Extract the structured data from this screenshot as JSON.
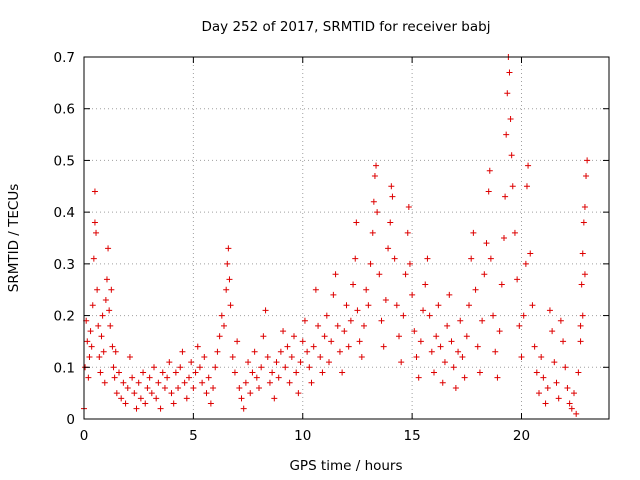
{
  "chart_data": {
    "type": "scatter",
    "title": "Day 252 of 2017, SRMTID for receiver babj",
    "xlabel": "GPS time / hours",
    "ylabel": "SRMTID / TECUs",
    "xlim": [
      0,
      24
    ],
    "ylim": [
      0,
      0.7
    ],
    "xticks": [
      0,
      5,
      10,
      15,
      20
    ],
    "yticks": [
      0,
      0.1,
      0.2,
      0.3,
      0.4,
      0.5,
      0.6,
      0.7
    ],
    "xtick_labels": [
      "0",
      "5",
      "10",
      "15",
      "20"
    ],
    "ytick_labels": [
      "0",
      "0.1",
      "0.2",
      "0.3",
      "0.4",
      "0.5",
      "0.6",
      "0.7"
    ],
    "grid": true,
    "legend": "none",
    "marker": "+",
    "color": "#dd0000",
    "series": [
      {
        "name": "SRMTID",
        "points": [
          [
            0.0,
            0.02
          ],
          [
            0.05,
            0.1
          ],
          [
            0.1,
            0.19
          ],
          [
            0.15,
            0.15
          ],
          [
            0.2,
            0.08
          ],
          [
            0.25,
            0.12
          ],
          [
            0.3,
            0.17
          ],
          [
            0.35,
            0.14
          ],
          [
            0.4,
            0.22
          ],
          [
            0.45,
            0.31
          ],
          [
            0.5,
            0.44
          ],
          [
            0.5,
            0.38
          ],
          [
            0.55,
            0.36
          ],
          [
            0.6,
            0.25
          ],
          [
            0.65,
            0.18
          ],
          [
            0.7,
            0.12
          ],
          [
            0.75,
            0.09
          ],
          [
            0.8,
            0.16
          ],
          [
            0.85,
            0.2
          ],
          [
            0.9,
            0.13
          ],
          [
            0.95,
            0.07
          ],
          [
            1.0,
            0.23
          ],
          [
            1.05,
            0.27
          ],
          [
            1.1,
            0.33
          ],
          [
            1.15,
            0.21
          ],
          [
            1.2,
            0.18
          ],
          [
            1.25,
            0.25
          ],
          [
            1.3,
            0.14
          ],
          [
            1.35,
            0.1
          ],
          [
            1.4,
            0.08
          ],
          [
            1.45,
            0.13
          ],
          [
            1.5,
            0.05
          ],
          [
            1.6,
            0.09
          ],
          [
            1.7,
            0.04
          ],
          [
            1.8,
            0.07
          ],
          [
            1.9,
            0.03
          ],
          [
            2.0,
            0.06
          ],
          [
            2.1,
            0.12
          ],
          [
            2.2,
            0.08
          ],
          [
            2.3,
            0.05
          ],
          [
            2.4,
            0.02
          ],
          [
            2.5,
            0.07
          ],
          [
            2.6,
            0.04
          ],
          [
            2.7,
            0.09
          ],
          [
            2.8,
            0.03
          ],
          [
            2.9,
            0.06
          ],
          [
            3.0,
            0.08
          ],
          [
            3.1,
            0.05
          ],
          [
            3.2,
            0.1
          ],
          [
            3.3,
            0.04
          ],
          [
            3.4,
            0.07
          ],
          [
            3.5,
            0.02
          ],
          [
            3.6,
            0.09
          ],
          [
            3.7,
            0.06
          ],
          [
            3.8,
            0.08
          ],
          [
            3.9,
            0.11
          ],
          [
            4.0,
            0.05
          ],
          [
            4.1,
            0.03
          ],
          [
            4.2,
            0.09
          ],
          [
            4.3,
            0.06
          ],
          [
            4.4,
            0.1
          ],
          [
            4.5,
            0.13
          ],
          [
            4.6,
            0.07
          ],
          [
            4.7,
            0.04
          ],
          [
            4.8,
            0.08
          ],
          [
            4.9,
            0.11
          ],
          [
            5.0,
            0.06
          ],
          [
            5.1,
            0.09
          ],
          [
            5.2,
            0.14
          ],
          [
            5.3,
            0.1
          ],
          [
            5.4,
            0.07
          ],
          [
            5.5,
            0.12
          ],
          [
            5.6,
            0.05
          ],
          [
            5.7,
            0.08
          ],
          [
            5.8,
            0.03
          ],
          [
            5.9,
            0.06
          ],
          [
            6.0,
            0.1
          ],
          [
            6.1,
            0.13
          ],
          [
            6.2,
            0.16
          ],
          [
            6.3,
            0.2
          ],
          [
            6.4,
            0.18
          ],
          [
            6.5,
            0.25
          ],
          [
            6.55,
            0.3
          ],
          [
            6.6,
            0.33
          ],
          [
            6.65,
            0.27
          ],
          [
            6.7,
            0.22
          ],
          [
            6.8,
            0.12
          ],
          [
            6.9,
            0.09
          ],
          [
            7.0,
            0.15
          ],
          [
            7.1,
            0.06
          ],
          [
            7.2,
            0.04
          ],
          [
            7.3,
            0.02
          ],
          [
            7.4,
            0.07
          ],
          [
            7.5,
            0.11
          ],
          [
            7.6,
            0.05
          ],
          [
            7.7,
            0.09
          ],
          [
            7.8,
            0.13
          ],
          [
            7.9,
            0.08
          ],
          [
            8.0,
            0.06
          ],
          [
            8.1,
            0.1
          ],
          [
            8.2,
            0.16
          ],
          [
            8.3,
            0.21
          ],
          [
            8.4,
            0.12
          ],
          [
            8.5,
            0.07
          ],
          [
            8.6,
            0.09
          ],
          [
            8.7,
            0.04
          ],
          [
            8.8,
            0.11
          ],
          [
            8.9,
            0.08
          ],
          [
            9.0,
            0.13
          ],
          [
            9.1,
            0.17
          ],
          [
            9.2,
            0.1
          ],
          [
            9.3,
            0.14
          ],
          [
            9.4,
            0.07
          ],
          [
            9.5,
            0.12
          ],
          [
            9.6,
            0.16
          ],
          [
            9.7,
            0.09
          ],
          [
            9.8,
            0.05
          ],
          [
            9.9,
            0.11
          ],
          [
            10.0,
            0.15
          ],
          [
            10.1,
            0.19
          ],
          [
            10.2,
            0.13
          ],
          [
            10.3,
            0.1
          ],
          [
            10.4,
            0.07
          ],
          [
            10.5,
            0.14
          ],
          [
            10.6,
            0.25
          ],
          [
            10.7,
            0.18
          ],
          [
            10.8,
            0.12
          ],
          [
            10.9,
            0.09
          ],
          [
            11.0,
            0.16
          ],
          [
            11.1,
            0.2
          ],
          [
            11.2,
            0.11
          ],
          [
            11.3,
            0.15
          ],
          [
            11.4,
            0.24
          ],
          [
            11.5,
            0.28
          ],
          [
            11.6,
            0.18
          ],
          [
            11.7,
            0.13
          ],
          [
            11.8,
            0.09
          ],
          [
            11.9,
            0.17
          ],
          [
            12.0,
            0.22
          ],
          [
            12.1,
            0.14
          ],
          [
            12.2,
            0.19
          ],
          [
            12.3,
            0.26
          ],
          [
            12.4,
            0.31
          ],
          [
            12.45,
            0.38
          ],
          [
            12.5,
            0.21
          ],
          [
            12.6,
            0.15
          ],
          [
            12.7,
            0.12
          ],
          [
            12.8,
            0.18
          ],
          [
            12.9,
            0.25
          ],
          [
            13.0,
            0.22
          ],
          [
            13.1,
            0.3
          ],
          [
            13.2,
            0.36
          ],
          [
            13.25,
            0.42
          ],
          [
            13.3,
            0.47
          ],
          [
            13.35,
            0.49
          ],
          [
            13.4,
            0.4
          ],
          [
            13.5,
            0.28
          ],
          [
            13.6,
            0.19
          ],
          [
            13.7,
            0.14
          ],
          [
            13.8,
            0.23
          ],
          [
            13.9,
            0.33
          ],
          [
            14.0,
            0.38
          ],
          [
            14.05,
            0.45
          ],
          [
            14.1,
            0.43
          ],
          [
            14.2,
            0.31
          ],
          [
            14.3,
            0.22
          ],
          [
            14.4,
            0.16
          ],
          [
            14.5,
            0.11
          ],
          [
            14.6,
            0.2
          ],
          [
            14.7,
            0.28
          ],
          [
            14.8,
            0.36
          ],
          [
            14.85,
            0.41
          ],
          [
            14.9,
            0.3
          ],
          [
            15.0,
            0.24
          ],
          [
            15.1,
            0.17
          ],
          [
            15.2,
            0.12
          ],
          [
            15.3,
            0.08
          ],
          [
            15.4,
            0.15
          ],
          [
            15.5,
            0.21
          ],
          [
            15.6,
            0.26
          ],
          [
            15.7,
            0.31
          ],
          [
            15.8,
            0.2
          ],
          [
            15.9,
            0.13
          ],
          [
            16.0,
            0.09
          ],
          [
            16.1,
            0.16
          ],
          [
            16.2,
            0.22
          ],
          [
            16.3,
            0.14
          ],
          [
            16.4,
            0.07
          ],
          [
            16.5,
            0.11
          ],
          [
            16.6,
            0.18
          ],
          [
            16.7,
            0.24
          ],
          [
            16.8,
            0.15
          ],
          [
            16.9,
            0.1
          ],
          [
            17.0,
            0.06
          ],
          [
            17.1,
            0.13
          ],
          [
            17.2,
            0.19
          ],
          [
            17.3,
            0.12
          ],
          [
            17.4,
            0.08
          ],
          [
            17.5,
            0.16
          ],
          [
            17.6,
            0.22
          ],
          [
            17.7,
            0.31
          ],
          [
            17.8,
            0.36
          ],
          [
            17.9,
            0.25
          ],
          [
            18.0,
            0.14
          ],
          [
            18.1,
            0.09
          ],
          [
            18.2,
            0.19
          ],
          [
            18.3,
            0.28
          ],
          [
            18.4,
            0.34
          ],
          [
            18.5,
            0.44
          ],
          [
            18.55,
            0.48
          ],
          [
            18.6,
            0.31
          ],
          [
            18.7,
            0.2
          ],
          [
            18.8,
            0.13
          ],
          [
            18.9,
            0.08
          ],
          [
            19.0,
            0.17
          ],
          [
            19.1,
            0.26
          ],
          [
            19.2,
            0.35
          ],
          [
            19.25,
            0.43
          ],
          [
            19.3,
            0.55
          ],
          [
            19.35,
            0.63
          ],
          [
            19.4,
            0.7
          ],
          [
            19.45,
            0.67
          ],
          [
            19.5,
            0.58
          ],
          [
            19.55,
            0.51
          ],
          [
            19.6,
            0.45
          ],
          [
            19.7,
            0.36
          ],
          [
            19.8,
            0.27
          ],
          [
            19.9,
            0.18
          ],
          [
            20.0,
            0.12
          ],
          [
            20.1,
            0.2
          ],
          [
            20.2,
            0.3
          ],
          [
            20.25,
            0.45
          ],
          [
            20.3,
            0.49
          ],
          [
            20.4,
            0.32
          ],
          [
            20.5,
            0.22
          ],
          [
            20.6,
            0.14
          ],
          [
            20.7,
            0.09
          ],
          [
            20.8,
            0.05
          ],
          [
            20.9,
            0.12
          ],
          [
            21.0,
            0.08
          ],
          [
            21.1,
            0.03
          ],
          [
            21.2,
            0.06
          ],
          [
            21.3,
            0.21
          ],
          [
            21.4,
            0.17
          ],
          [
            21.5,
            0.11
          ],
          [
            21.6,
            0.07
          ],
          [
            21.7,
            0.04
          ],
          [
            21.8,
            0.19
          ],
          [
            21.9,
            0.15
          ],
          [
            22.0,
            0.1
          ],
          [
            22.1,
            0.06
          ],
          [
            22.2,
            0.03
          ],
          [
            22.3,
            0.02
          ],
          [
            22.4,
            0.05
          ],
          [
            22.5,
            0.01
          ],
          [
            22.6,
            0.09
          ],
          [
            22.7,
            0.18
          ],
          [
            22.75,
            0.26
          ],
          [
            22.8,
            0.32
          ],
          [
            22.85,
            0.38
          ],
          [
            22.9,
            0.41
          ],
          [
            22.95,
            0.47
          ],
          [
            23.0,
            0.5
          ],
          [
            22.9,
            0.28
          ],
          [
            22.8,
            0.2
          ],
          [
            22.7,
            0.15
          ]
        ]
      }
    ]
  }
}
